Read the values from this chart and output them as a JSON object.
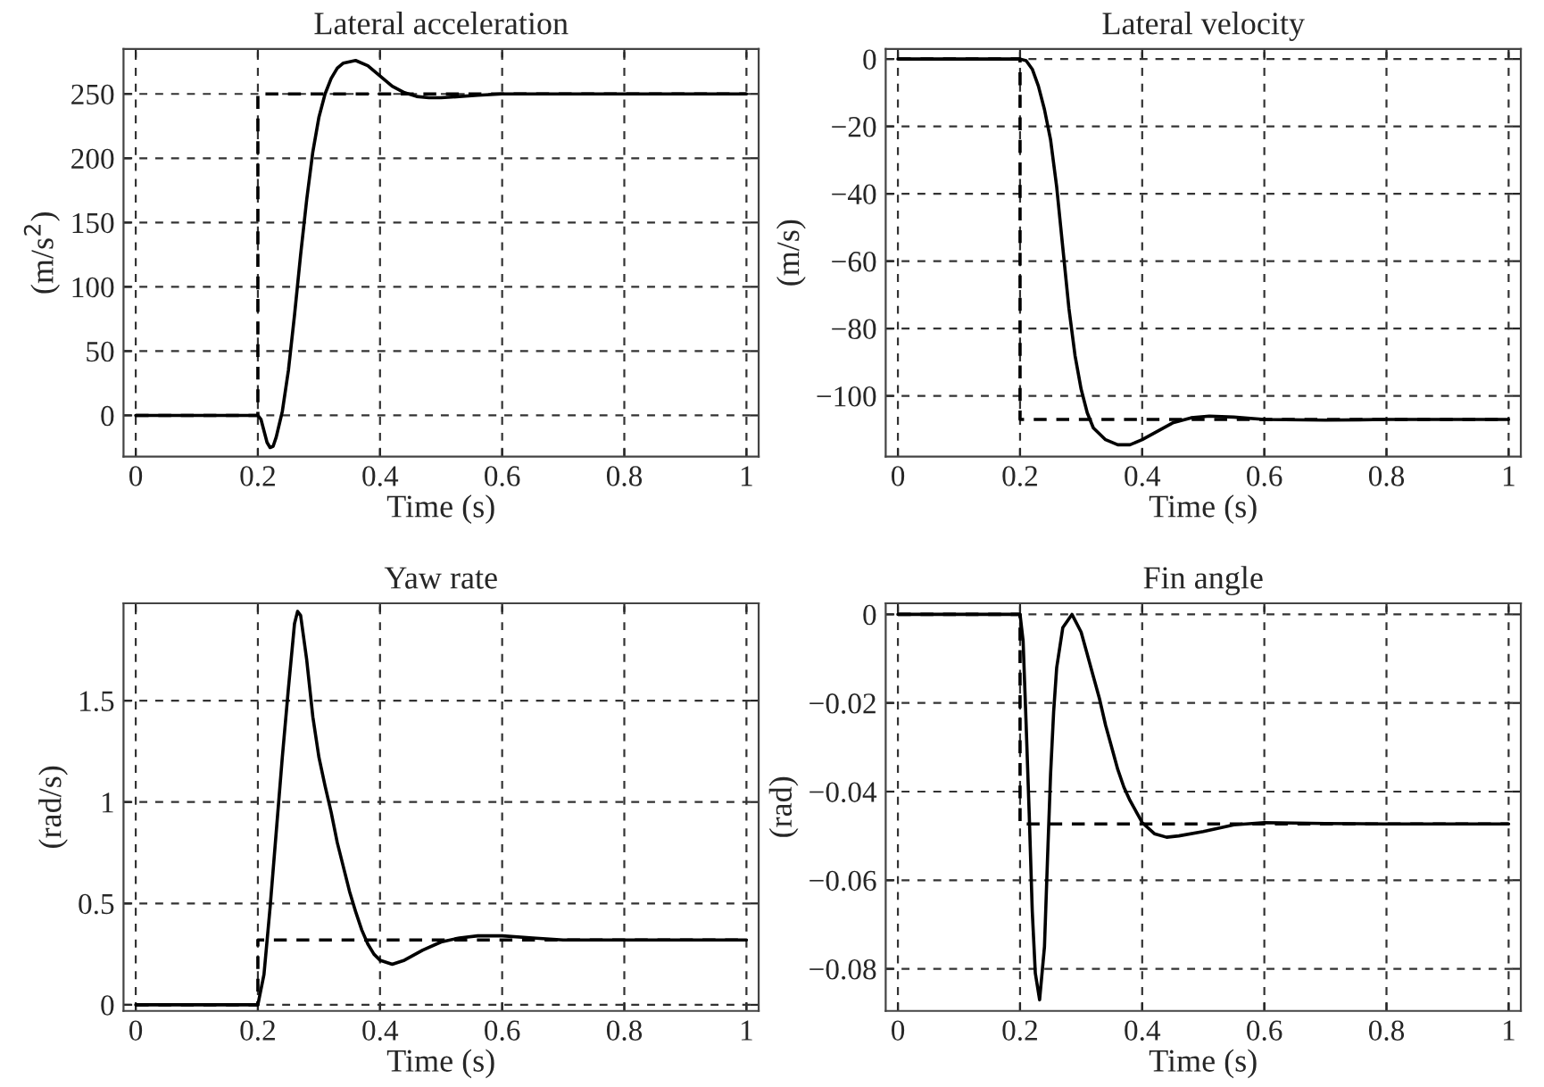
{
  "chart_data": [
    {
      "type": "line",
      "title": "Lateral acceleration",
      "xlabel": "Time (s)",
      "ylabel": "(m/s$^{2}$)",
      "grid": true,
      "legend": false,
      "marker": "none",
      "xlim": [
        -0.02,
        1.02
      ],
      "ylim": [
        -32,
        285
      ],
      "xticks": [
        0,
        0.2,
        0.4,
        0.6,
        0.8,
        1
      ],
      "yticks": [
        0,
        50,
        100,
        150,
        200,
        250
      ],
      "series": [
        {
          "color": "#000000",
          "line_style": "solid",
          "x": [
            0,
            0.2,
            0.205,
            0.21,
            0.215,
            0.22,
            0.225,
            0.23,
            0.235,
            0.24,
            0.25,
            0.26,
            0.27,
            0.28,
            0.29,
            0.3,
            0.31,
            0.32,
            0.33,
            0.34,
            0.36,
            0.38,
            0.4,
            0.42,
            0.44,
            0.46,
            0.48,
            0.5,
            0.53,
            0.56,
            0.6,
            0.65,
            0.7,
            0.8,
            1
          ],
          "values": [
            0,
            0,
            -3,
            -12,
            -21,
            -25,
            -24,
            -17,
            -7,
            3,
            35,
            78,
            125,
            168,
            205,
            232,
            250,
            262,
            270,
            274,
            276,
            272,
            264,
            256,
            251,
            248,
            247,
            247,
            248,
            249,
            250,
            250,
            250,
            250,
            250
          ]
        },
        {
          "color": "#000000",
          "line_style": "dashed",
          "x": [
            0,
            0.2,
            0.2,
            1
          ],
          "values": [
            0,
            0,
            250,
            250
          ]
        }
      ]
    },
    {
      "type": "line",
      "title": "Lateral velocity",
      "xlabel": "Time (s)",
      "ylabel": "(m/s)",
      "grid": true,
      "legend": false,
      "marker": "none",
      "xlim": [
        -0.02,
        1.02
      ],
      "ylim": [
        -118,
        3
      ],
      "xticks": [
        0,
        0.2,
        0.4,
        0.6,
        0.8,
        1
      ],
      "yticks": [
        0,
        {
          "value": -20,
          "label": "−20"
        },
        {
          "value": -40,
          "label": "−40"
        },
        {
          "value": -60,
          "label": "−60"
        },
        {
          "value": -80,
          "label": "−80"
        },
        {
          "value": -100,
          "label": "−100"
        }
      ],
      "series": [
        {
          "color": "#000000",
          "line_style": "solid",
          "x": [
            0,
            0.2,
            0.21,
            0.22,
            0.23,
            0.24,
            0.25,
            0.26,
            0.27,
            0.28,
            0.29,
            0.3,
            0.31,
            0.32,
            0.34,
            0.36,
            0.38,
            0.4,
            0.42,
            0.45,
            0.48,
            0.51,
            0.55,
            0.6,
            0.7,
            0.8,
            1
          ],
          "values": [
            0,
            0,
            -0.5,
            -3,
            -8,
            -15,
            -24,
            -38,
            -56,
            -74,
            -88,
            -98,
            -105,
            -109.5,
            -113,
            -114.5,
            -114.5,
            -113,
            -111,
            -108,
            -106.5,
            -106,
            -106.3,
            -107,
            -107.2,
            -107,
            -107
          ]
        },
        {
          "color": "#000000",
          "line_style": "dashed",
          "x": [
            0,
            0.2,
            0.2,
            1
          ],
          "values": [
            0,
            0,
            -107,
            -107
          ]
        }
      ]
    },
    {
      "type": "line",
      "title": "Yaw rate",
      "xlabel": "Time (s)",
      "ylabel": "(rad/s)",
      "grid": true,
      "legend": false,
      "marker": "none",
      "xlim": [
        -0.02,
        1.02
      ],
      "ylim": [
        -0.03,
        1.98
      ],
      "xticks": [
        0,
        0.2,
        0.4,
        0.6,
        0.8,
        1
      ],
      "yticks": [
        0,
        0.5,
        1,
        1.5
      ],
      "series": [
        {
          "color": "#000000",
          "line_style": "solid",
          "x": [
            0,
            0.2,
            0.21,
            0.22,
            0.23,
            0.24,
            0.25,
            0.26,
            0.265,
            0.27,
            0.28,
            0.29,
            0.3,
            0.31,
            0.32,
            0.33,
            0.34,
            0.35,
            0.36,
            0.37,
            0.38,
            0.39,
            0.4,
            0.42,
            0.44,
            0.47,
            0.5,
            0.53,
            0.56,
            0.6,
            0.65,
            0.7,
            0.8,
            1
          ],
          "values": [
            0,
            0,
            0.15,
            0.48,
            0.85,
            1.22,
            1.56,
            1.88,
            1.94,
            1.92,
            1.7,
            1.42,
            1.22,
            1.08,
            0.95,
            0.8,
            0.68,
            0.56,
            0.46,
            0.37,
            0.3,
            0.25,
            0.22,
            0.2,
            0.22,
            0.27,
            0.31,
            0.33,
            0.34,
            0.34,
            0.33,
            0.32,
            0.32,
            0.32
          ]
        },
        {
          "color": "#000000",
          "line_style": "dashed",
          "x": [
            0,
            0.2,
            0.2,
            1
          ],
          "values": [
            0,
            0,
            0.32,
            0.32
          ]
        }
      ]
    },
    {
      "type": "line",
      "title": "Fin angle",
      "xlabel": "Time (s)",
      "ylabel": "(rad)",
      "grid": true,
      "legend": false,
      "marker": "none",
      "xlim": [
        -0.02,
        1.02
      ],
      "ylim": [
        -0.0895,
        0.0025
      ],
      "xticks": [
        0,
        0.2,
        0.4,
        0.6,
        0.8,
        1
      ],
      "yticks": [
        0,
        {
          "value": -0.02,
          "label": "−0.02"
        },
        {
          "value": -0.04,
          "label": "−0.04"
        },
        {
          "value": -0.06,
          "label": "−0.06"
        },
        {
          "value": -0.08,
          "label": "−0.08"
        }
      ],
      "series": [
        {
          "color": "#000000",
          "line_style": "solid",
          "x": [
            0,
            0.2,
            0.205,
            0.21,
            0.215,
            0.22,
            0.225,
            0.232,
            0.24,
            0.245,
            0.25,
            0.255,
            0.26,
            0.27,
            0.285,
            0.3,
            0.31,
            0.32,
            0.33,
            0.34,
            0.35,
            0.36,
            0.37,
            0.38,
            0.4,
            0.42,
            0.44,
            0.46,
            0.5,
            0.55,
            0.6,
            0.7,
            0.8,
            1
          ],
          "values": [
            0,
            0,
            -0.006,
            -0.025,
            -0.045,
            -0.067,
            -0.081,
            -0.087,
            -0.075,
            -0.055,
            -0.036,
            -0.022,
            -0.012,
            -0.003,
            0,
            -0.004,
            -0.009,
            -0.014,
            -0.019,
            -0.025,
            -0.03,
            -0.035,
            -0.039,
            -0.042,
            -0.047,
            -0.0495,
            -0.0503,
            -0.05,
            -0.049,
            -0.0475,
            -0.047,
            -0.0472,
            -0.0473,
            -0.0473
          ]
        },
        {
          "color": "#000000",
          "line_style": "dashed",
          "x": [
            0,
            0.2,
            0.2,
            1
          ],
          "values": [
            0,
            0,
            -0.0473,
            -0.0473
          ]
        }
      ]
    }
  ]
}
